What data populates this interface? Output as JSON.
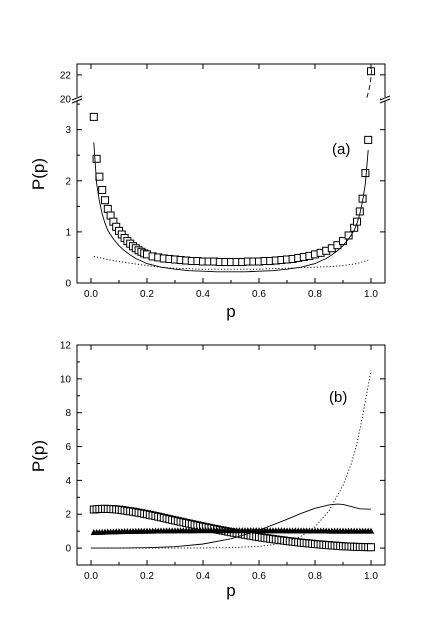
{
  "chart_data": [
    {
      "type": "scatter",
      "panel_label": "(a)",
      "xlabel": "p",
      "ylabel": "P(p)",
      "xlim": [
        -0.05,
        1.05
      ],
      "ylim_lower": [
        0,
        3.6
      ],
      "ylim_upper": [
        20,
        22.9
      ],
      "axis_break": "y between 3.6 and 20",
      "x_ticks": [
        "0.0",
        "0.2",
        "0.4",
        "0.6",
        "0.8",
        "1.0"
      ],
      "y_ticks_lower": [
        "0",
        "1",
        "2",
        "3"
      ],
      "y_ticks_upper": [
        "20",
        "22"
      ],
      "grid": false,
      "series": [
        {
          "style": "open-square",
          "points": [
            [
              0.01,
              3.25
            ],
            [
              0.02,
              2.43
            ],
            [
              0.03,
              2.08
            ],
            [
              0.04,
              1.82
            ],
            [
              0.05,
              1.62
            ],
            [
              0.06,
              1.45
            ],
            [
              0.07,
              1.32
            ],
            [
              0.08,
              1.2
            ],
            [
              0.09,
              1.1
            ],
            [
              0.1,
              1.02
            ],
            [
              0.11,
              0.95
            ],
            [
              0.12,
              0.88
            ],
            [
              0.13,
              0.82
            ],
            [
              0.14,
              0.77
            ],
            [
              0.15,
              0.72
            ],
            [
              0.16,
              0.68
            ],
            [
              0.17,
              0.64
            ],
            [
              0.18,
              0.61
            ],
            [
              0.19,
              0.58
            ],
            [
              0.2,
              0.56
            ],
            [
              0.22,
              0.52
            ],
            [
              0.24,
              0.5
            ],
            [
              0.26,
              0.48
            ],
            [
              0.28,
              0.47
            ],
            [
              0.3,
              0.46
            ],
            [
              0.32,
              0.45
            ],
            [
              0.34,
              0.44
            ],
            [
              0.36,
              0.43
            ],
            [
              0.38,
              0.43
            ],
            [
              0.4,
              0.42
            ],
            [
              0.42,
              0.42
            ],
            [
              0.44,
              0.42
            ],
            [
              0.46,
              0.41
            ],
            [
              0.48,
              0.41
            ],
            [
              0.5,
              0.41
            ],
            [
              0.52,
              0.41
            ],
            [
              0.54,
              0.41
            ],
            [
              0.56,
              0.42
            ],
            [
              0.58,
              0.42
            ],
            [
              0.6,
              0.42
            ],
            [
              0.62,
              0.43
            ],
            [
              0.64,
              0.43
            ],
            [
              0.66,
              0.44
            ],
            [
              0.68,
              0.45
            ],
            [
              0.7,
              0.46
            ],
            [
              0.72,
              0.47
            ],
            [
              0.74,
              0.49
            ],
            [
              0.76,
              0.51
            ],
            [
              0.78,
              0.53
            ],
            [
              0.8,
              0.56
            ],
            [
              0.82,
              0.59
            ],
            [
              0.84,
              0.63
            ],
            [
              0.86,
              0.68
            ],
            [
              0.88,
              0.74
            ],
            [
              0.9,
              0.82
            ],
            [
              0.92,
              0.93
            ],
            [
              0.94,
              1.08
            ],
            [
              0.95,
              1.2
            ],
            [
              0.96,
              1.4
            ],
            [
              0.97,
              1.65
            ],
            [
              0.98,
              2.15
            ],
            [
              0.99,
              2.8
            ],
            [
              1.0,
              22.3
            ]
          ]
        },
        {
          "style": "solid-line",
          "points": [
            [
              0.01,
              2.75
            ],
            [
              0.02,
              1.95
            ],
            [
              0.03,
              1.6
            ],
            [
              0.04,
              1.35
            ],
            [
              0.05,
              1.17
            ],
            [
              0.06,
              1.03
            ],
            [
              0.08,
              0.86
            ],
            [
              0.1,
              0.73
            ],
            [
              0.12,
              0.63
            ],
            [
              0.14,
              0.55
            ],
            [
              0.16,
              0.48
            ],
            [
              0.18,
              0.43
            ],
            [
              0.2,
              0.38
            ],
            [
              0.25,
              0.31
            ],
            [
              0.3,
              0.27
            ],
            [
              0.35,
              0.24
            ],
            [
              0.4,
              0.23
            ],
            [
              0.45,
              0.22
            ],
            [
              0.5,
              0.22
            ],
            [
              0.55,
              0.22
            ],
            [
              0.6,
              0.23
            ],
            [
              0.65,
              0.24
            ],
            [
              0.7,
              0.27
            ],
            [
              0.75,
              0.31
            ],
            [
              0.8,
              0.38
            ],
            [
              0.82,
              0.43
            ],
            [
              0.84,
              0.48
            ],
            [
              0.86,
              0.55
            ],
            [
              0.88,
              0.63
            ],
            [
              0.9,
              0.73
            ],
            [
              0.92,
              0.86
            ],
            [
              0.94,
              1.03
            ],
            [
              0.95,
              1.17
            ],
            [
              0.96,
              1.35
            ],
            [
              0.97,
              1.6
            ],
            [
              0.98,
              1.95
            ],
            [
              0.99,
              2.6
            ]
          ]
        },
        {
          "style": "dotted-line",
          "points": [
            [
              0.01,
              0.52
            ],
            [
              0.05,
              0.47
            ],
            [
              0.1,
              0.42
            ],
            [
              0.15,
              0.38
            ],
            [
              0.2,
              0.34
            ],
            [
              0.25,
              0.31
            ],
            [
              0.3,
              0.29
            ],
            [
              0.35,
              0.28
            ],
            [
              0.4,
              0.27
            ],
            [
              0.45,
              0.27
            ],
            [
              0.5,
              0.27
            ],
            [
              0.55,
              0.27
            ],
            [
              0.6,
              0.27
            ],
            [
              0.65,
              0.28
            ],
            [
              0.7,
              0.29
            ],
            [
              0.75,
              0.3
            ],
            [
              0.8,
              0.31
            ],
            [
              0.85,
              0.32
            ],
            [
              0.9,
              0.34
            ],
            [
              0.95,
              0.38
            ],
            [
              0.99,
              0.45
            ]
          ]
        },
        {
          "style": "dashed-line",
          "points": [
            [
              0.985,
              20.1
            ],
            [
              0.99,
              20.5
            ],
            [
              0.995,
              21.0
            ],
            [
              1.0,
              21.8
            ],
            [
              1.003,
              22.6
            ]
          ]
        }
      ]
    },
    {
      "type": "scatter",
      "panel_label": "(b)",
      "xlabel": "p",
      "ylabel": "P(p)",
      "xlim": [
        -0.05,
        1.05
      ],
      "ylim": [
        -1,
        12
      ],
      "x_ticks": [
        "0.0",
        "0.2",
        "0.4",
        "0.6",
        "0.8",
        "1.0"
      ],
      "y_ticks": [
        "0",
        "2",
        "4",
        "6",
        "8",
        "10",
        "12"
      ],
      "grid": false,
      "series": [
        {
          "style": "open-square",
          "x_start": 0.01,
          "x_end": 1.0,
          "x_step": 0.01,
          "function": "2.3 at p=0.01, peak ~2.32 near p=0.05, falling smoothly to ~0.05 at p=1.0",
          "points": [
            [
              0.01,
              2.28
            ],
            [
              0.03,
              2.31
            ],
            [
              0.05,
              2.32
            ],
            [
              0.08,
              2.3
            ],
            [
              0.1,
              2.27
            ],
            [
              0.15,
              2.15
            ],
            [
              0.2,
              2.0
            ],
            [
              0.25,
              1.82
            ],
            [
              0.3,
              1.63
            ],
            [
              0.35,
              1.45
            ],
            [
              0.4,
              1.27
            ],
            [
              0.45,
              1.1
            ],
            [
              0.5,
              0.94
            ],
            [
              0.55,
              0.79
            ],
            [
              0.6,
              0.65
            ],
            [
              0.65,
              0.53
            ],
            [
              0.7,
              0.42
            ],
            [
              0.75,
              0.32
            ],
            [
              0.8,
              0.24
            ],
            [
              0.85,
              0.17
            ],
            [
              0.9,
              0.11
            ],
            [
              0.95,
              0.07
            ],
            [
              1.0,
              0.05
            ]
          ]
        },
        {
          "style": "filled-triangle",
          "x_start": 0.01,
          "x_end": 1.0,
          "x_step": 0.01,
          "points": [
            [
              0.01,
              0.92
            ],
            [
              0.1,
              0.97
            ],
            [
              0.2,
              1.0
            ],
            [
              0.3,
              1.02
            ],
            [
              0.4,
              1.03
            ],
            [
              0.5,
              1.03
            ],
            [
              0.6,
              1.03
            ],
            [
              0.7,
              1.02
            ],
            [
              0.8,
              1.01
            ],
            [
              0.9,
              1.0
            ],
            [
              1.0,
              1.0
            ]
          ]
        },
        {
          "style": "solid-line",
          "points": [
            [
              0.0,
              0.0
            ],
            [
              0.1,
              0.0
            ],
            [
              0.2,
              0.02
            ],
            [
              0.3,
              0.08
            ],
            [
              0.4,
              0.24
            ],
            [
              0.5,
              0.55
            ],
            [
              0.6,
              1.05
            ],
            [
              0.7,
              1.7
            ],
            [
              0.75,
              2.05
            ],
            [
              0.8,
              2.35
            ],
            [
              0.85,
              2.55
            ],
            [
              0.88,
              2.6
            ],
            [
              0.9,
              2.58
            ],
            [
              0.93,
              2.45
            ],
            [
              0.96,
              2.32
            ],
            [
              1.0,
              2.3
            ]
          ]
        },
        {
          "style": "dotted-line",
          "points": [
            [
              0.0,
              0.0
            ],
            [
              0.3,
              0.0
            ],
            [
              0.4,
              0.01
            ],
            [
              0.5,
              0.03
            ],
            [
              0.6,
              0.1
            ],
            [
              0.65,
              0.2
            ],
            [
              0.7,
              0.38
            ],
            [
              0.75,
              0.7
            ],
            [
              0.8,
              1.25
            ],
            [
              0.85,
              2.2
            ],
            [
              0.9,
              3.7
            ],
            [
              0.93,
              5.0
            ],
            [
              0.95,
              6.2
            ],
            [
              0.97,
              7.8
            ],
            [
              0.99,
              9.6
            ],
            [
              1.0,
              10.5
            ]
          ]
        }
      ]
    }
  ]
}
